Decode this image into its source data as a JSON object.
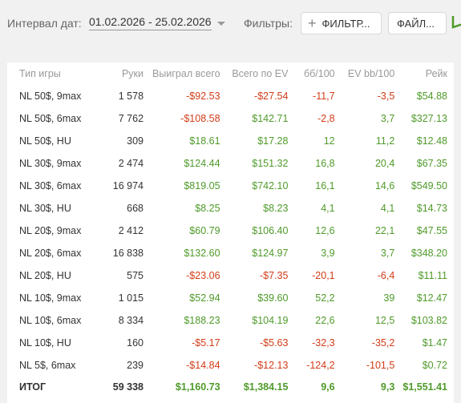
{
  "toolbar": {
    "date_label": "Интервал дат:",
    "date_range": "01.02.2026 - 25.02.2026",
    "filters_label": "Фильтры:",
    "filter_button": "ФИЛЬТР...",
    "file_button": "ФАЙЛ..."
  },
  "table": {
    "headers": [
      "Тип игры",
      "Руки",
      "Выиграл всего",
      "Всего по EV",
      "бб/100",
      "EV bb/100",
      "Рейк"
    ],
    "rows": [
      {
        "game": "NL 50$, 9max",
        "hands": "1 578",
        "won": "-$92.53",
        "ev": "-$27.54",
        "bb100": "-11,7",
        "evbb100": "-3,5",
        "rake": "$54.88"
      },
      {
        "game": "NL 50$, 6max",
        "hands": "7 762",
        "won": "-$108.58",
        "ev": "$142.71",
        "bb100": "-2,8",
        "evbb100": "3,7",
        "rake": "$327.13"
      },
      {
        "game": "NL 50$, HU",
        "hands": "309",
        "won": "$18.61",
        "ev": "$17.28",
        "bb100": "12",
        "evbb100": "11,2",
        "rake": "$12.48"
      },
      {
        "game": "NL 30$, 9max",
        "hands": "2 474",
        "won": "$124.44",
        "ev": "$151.32",
        "bb100": "16,8",
        "evbb100": "20,4",
        "rake": "$67.35"
      },
      {
        "game": "NL 30$, 6max",
        "hands": "16 974",
        "won": "$819.05",
        "ev": "$742.10",
        "bb100": "16,1",
        "evbb100": "14,6",
        "rake": "$549.50"
      },
      {
        "game": "NL 30$, HU",
        "hands": "668",
        "won": "$8.25",
        "ev": "$8.23",
        "bb100": "4,1",
        "evbb100": "4,1",
        "rake": "$14.73"
      },
      {
        "game": "NL 20$, 9max",
        "hands": "2 412",
        "won": "$60.79",
        "ev": "$106.40",
        "bb100": "12,6",
        "evbb100": "22,1",
        "rake": "$47.55"
      },
      {
        "game": "NL 20$, 6max",
        "hands": "16 838",
        "won": "$132.60",
        "ev": "$124.97",
        "bb100": "3,9",
        "evbb100": "3,7",
        "rake": "$348.20"
      },
      {
        "game": "NL 20$, HU",
        "hands": "575",
        "won": "-$23.06",
        "ev": "-$7.35",
        "bb100": "-20,1",
        "evbb100": "-6,4",
        "rake": "$11.11"
      },
      {
        "game": "NL 10$, 9max",
        "hands": "1 015",
        "won": "$52.94",
        "ev": "$39.60",
        "bb100": "52,2",
        "evbb100": "39",
        "rake": "$12.47"
      },
      {
        "game": "NL 10$, 6max",
        "hands": "8 334",
        "won": "$188.23",
        "ev": "$104.19",
        "bb100": "22,6",
        "evbb100": "12,5",
        "rake": "$103.82"
      },
      {
        "game": "NL 10$, HU",
        "hands": "160",
        "won": "-$5.17",
        "ev": "-$5.63",
        "bb100": "-32,3",
        "evbb100": "-35,2",
        "rake": "$1.47"
      },
      {
        "game": "NL 5$, 6max",
        "hands": "239",
        "won": "-$14.84",
        "ev": "-$12.13",
        "bb100": "-124,2",
        "evbb100": "-101,5",
        "rake": "$0.72"
      }
    ],
    "total": {
      "game": "ИТОГ",
      "hands": "59 338",
      "won": "$1,160.73",
      "ev": "$1,384.15",
      "bb100": "9,6",
      "evbb100": "9,3",
      "rake": "$1,551.41"
    }
  },
  "colors": {
    "positive": "#4f9a2a",
    "negative": "#d23c17",
    "header": "#999999"
  }
}
